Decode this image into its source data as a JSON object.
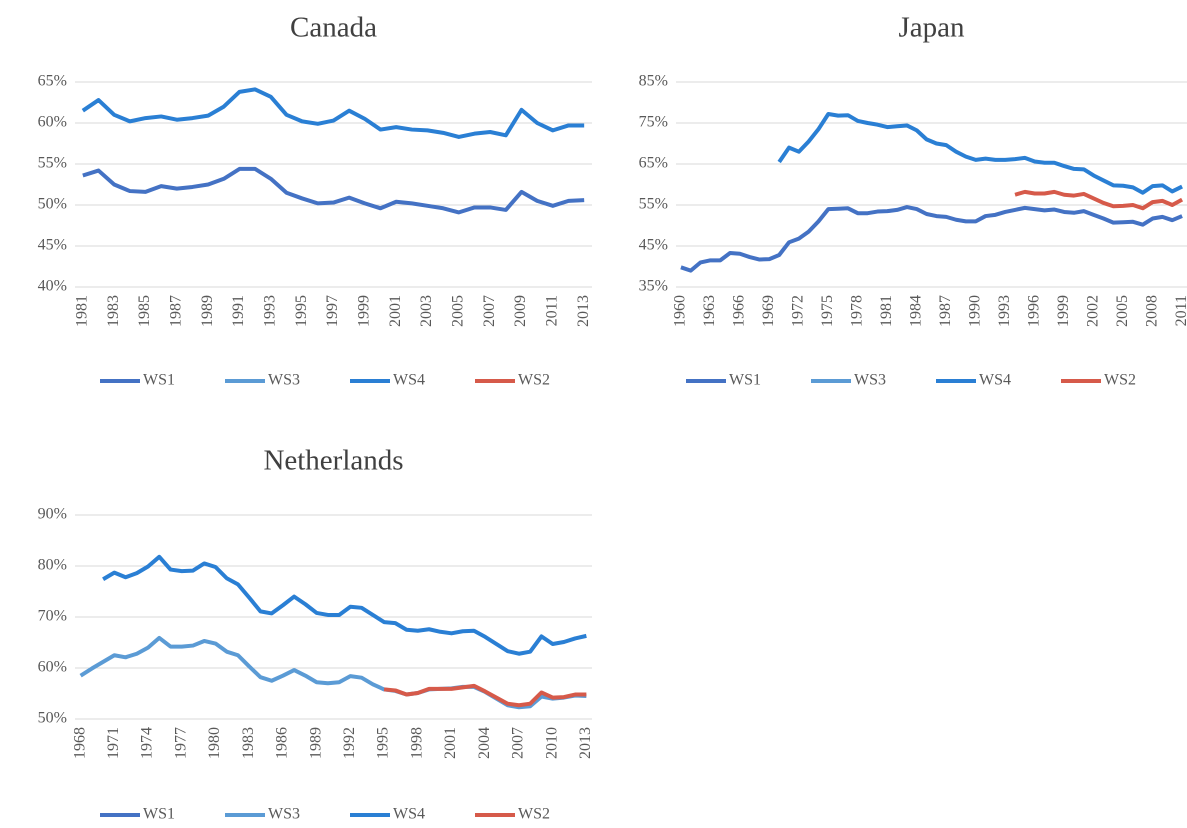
{
  "chart_data": [
    {
      "type": "line",
      "title": "Canada",
      "categories": [
        "1981",
        null,
        "1983",
        null,
        "1985",
        null,
        "1987",
        null,
        "1989",
        null,
        "1991",
        null,
        "1993",
        null,
        "1995",
        null,
        "1997",
        null,
        "1999",
        null,
        "2001",
        null,
        "2003",
        null,
        "2005",
        null,
        "2007",
        null,
        "2009",
        null,
        "2011",
        null,
        "2013"
      ],
      "ylim": [
        40,
        65
      ],
      "yticks": [
        {
          "value": 40,
          "label": "40%"
        },
        {
          "value": 45,
          "label": "45%"
        },
        {
          "value": 50,
          "label": "50%"
        },
        {
          "value": 55,
          "label": "55%"
        },
        {
          "value": 60,
          "label": "60%"
        },
        {
          "value": 65,
          "label": "65%"
        }
      ],
      "grid": true,
      "legend": "bottom",
      "series": [
        {
          "name": "WS1",
          "color": "#4472c4",
          "values": [
            53.6,
            54.2,
            52.5,
            51.7,
            51.6,
            52.3,
            52,
            52.2,
            52.5,
            53.2,
            54.4,
            54.4,
            53.2,
            51.5,
            50.8,
            50.2,
            50.3,
            50.9,
            50.2,
            49.6,
            50.4,
            50.2,
            49.9,
            49.6,
            49.1,
            49.7,
            49.7,
            49.4,
            51.6,
            50.5,
            49.9,
            50.5,
            50.6
          ]
        },
        {
          "name": "WS3",
          "color": "#5b9bd5",
          "values": [
            null,
            null,
            null,
            null,
            null,
            null,
            null,
            null,
            null,
            null,
            null,
            null,
            null,
            null,
            null,
            null,
            null,
            null,
            null,
            null,
            null,
            null,
            null,
            null,
            null,
            null,
            null,
            null,
            null,
            null,
            null,
            null,
            null
          ]
        },
        {
          "name": "WS4",
          "color": "#2a7fd4",
          "values": [
            61.5,
            62.8,
            61,
            60.2,
            60.6,
            60.8,
            60.4,
            60.6,
            60.9,
            62,
            63.8,
            64.1,
            63.2,
            61,
            60.2,
            59.9,
            60.3,
            61.5,
            60.5,
            59.2,
            59.5,
            59.2,
            59.1,
            58.8,
            58.3,
            58.7,
            58.9,
            58.5,
            61.6,
            60,
            59.1,
            59.7,
            59.7
          ]
        },
        {
          "name": "WS2",
          "color": "#d65a4a",
          "values": [
            null,
            null,
            null,
            null,
            null,
            null,
            null,
            null,
            null,
            null,
            null,
            null,
            null,
            null,
            null,
            null,
            null,
            null,
            null,
            null,
            null,
            null,
            null,
            null,
            null,
            null,
            null,
            null,
            null,
            null,
            null,
            null,
            null
          ]
        }
      ]
    },
    {
      "type": "line",
      "title": "Japan",
      "categories": [
        "1960",
        null,
        null,
        "1963",
        null,
        null,
        "1966",
        null,
        null,
        "1969",
        null,
        null,
        "1972",
        null,
        null,
        "1975",
        null,
        null,
        "1978",
        null,
        null,
        "1981",
        null,
        null,
        "1984",
        null,
        null,
        "1987",
        null,
        null,
        "1990",
        null,
        null,
        "1993",
        null,
        null,
        "1996",
        null,
        null,
        "1999",
        null,
        null,
        "2002",
        null,
        null,
        "2005",
        null,
        null,
        "2008",
        null,
        null,
        "2011"
      ],
      "ylim": [
        35,
        85
      ],
      "yticks": [
        {
          "value": 35,
          "label": "35%"
        },
        {
          "value": 45,
          "label": "45%"
        },
        {
          "value": 55,
          "label": "55%"
        },
        {
          "value": 65,
          "label": "65%"
        },
        {
          "value": 75,
          "label": "75%"
        },
        {
          "value": 85,
          "label": "85%"
        }
      ],
      "grid": true,
      "legend": "bottom",
      "series": [
        {
          "name": "WS1",
          "color": "#4472c4",
          "values": [
            39.8,
            39,
            41,
            41.5,
            41.5,
            43.3,
            43.1,
            42.3,
            41.7,
            41.8,
            42.8,
            45.9,
            46.8,
            48.5,
            51,
            54,
            54.1,
            54.2,
            53,
            53,
            53.4,
            53.5,
            53.8,
            54.5,
            54,
            52.8,
            52.3,
            52.1,
            51.4,
            51,
            51,
            52.3,
            52.6,
            53.3,
            53.8,
            54.3,
            54,
            53.7,
            53.9,
            53.3,
            53.1,
            53.5,
            52.6,
            51.7,
            50.7,
            50.8,
            50.9,
            50.2,
            51.7,
            52.1,
            51.3,
            52.3
          ]
        },
        {
          "name": "WS3",
          "color": "#5b9bd5",
          "values": [
            null,
            null,
            null,
            null,
            null,
            null,
            null,
            null,
            null,
            null,
            null,
            null,
            null,
            null,
            null,
            null,
            null,
            null,
            null,
            null,
            null,
            null,
            null,
            null,
            null,
            null,
            null,
            null,
            null,
            null,
            null,
            null,
            null,
            null,
            null,
            null,
            null,
            null,
            null,
            null,
            null,
            null,
            null,
            null,
            null,
            null,
            null,
            null,
            null,
            null,
            null,
            null
          ]
        },
        {
          "name": "WS4",
          "color": "#2a7fd4",
          "values": [
            null,
            null,
            null,
            null,
            null,
            null,
            null,
            null,
            null,
            null,
            65.5,
            69,
            68,
            70.5,
            73.5,
            77.2,
            76.8,
            76.9,
            75.5,
            75,
            74.6,
            74,
            74.2,
            74.4,
            73.2,
            71,
            70,
            69.6,
            68,
            66.8,
            66,
            66.3,
            66,
            66,
            66.2,
            66.5,
            65.6,
            65.3,
            65.3,
            64.5,
            63.8,
            63.7,
            62.2,
            61,
            59.8,
            59.7,
            59.3,
            58,
            59.6,
            59.8,
            58.3,
            59.5
          ]
        },
        {
          "name": "WS2",
          "color": "#d65a4a",
          "values": [
            null,
            null,
            null,
            null,
            null,
            null,
            null,
            null,
            null,
            null,
            null,
            null,
            null,
            null,
            null,
            null,
            null,
            null,
            null,
            null,
            null,
            null,
            null,
            null,
            null,
            null,
            null,
            null,
            null,
            null,
            null,
            null,
            null,
            null,
            57.5,
            58.2,
            57.8,
            57.8,
            58.2,
            57.5,
            57.3,
            57.7,
            56.6,
            55.5,
            54.7,
            54.8,
            55,
            54.2,
            55.7,
            56,
            55,
            56.3
          ]
        }
      ]
    },
    {
      "type": "line",
      "title": "Netherlands",
      "categories": [
        "1968",
        null,
        null,
        "1971",
        null,
        null,
        "1974",
        null,
        null,
        "1977",
        null,
        null,
        "1980",
        null,
        null,
        "1983",
        null,
        null,
        "1986",
        null,
        null,
        "1989",
        null,
        null,
        "1992",
        null,
        null,
        "1995",
        null,
        null,
        "1998",
        null,
        null,
        "2001",
        null,
        null,
        "2004",
        null,
        null,
        "2007",
        null,
        null,
        "2010",
        null,
        null,
        "2013"
      ],
      "ylim": [
        50,
        90
      ],
      "yticks": [
        {
          "value": 50,
          "label": "50%"
        },
        {
          "value": 60,
          "label": "60%"
        },
        {
          "value": 70,
          "label": "70%"
        },
        {
          "value": 80,
          "label": "80%"
        },
        {
          "value": 90,
          "label": "90%"
        }
      ],
      "grid": true,
      "legend": "bottom",
      "series": [
        {
          "name": "WS1",
          "color": "#4472c4",
          "values": [
            null,
            null,
            null,
            null,
            null,
            null,
            null,
            null,
            null,
            null,
            null,
            null,
            null,
            null,
            null,
            null,
            null,
            null,
            null,
            null,
            null,
            null,
            null,
            null,
            null,
            null,
            null,
            null,
            null,
            null,
            null,
            null,
            null,
            null,
            null,
            null,
            null,
            null,
            null,
            null,
            null,
            null,
            null,
            null,
            null,
            null
          ]
        },
        {
          "name": "WS3",
          "color": "#5b9bd5",
          "values": [
            58.5,
            59.9,
            61.2,
            62.5,
            62.1,
            62.8,
            64,
            65.9,
            64.2,
            64.2,
            64.4,
            65.3,
            64.8,
            63.2,
            62.5,
            60.3,
            58.2,
            57.5,
            58.5,
            59.6,
            58.5,
            57.2,
            57,
            57.2,
            58.4,
            58.1,
            56.8,
            55.8,
            55.5,
            54.8,
            55.1,
            55.8,
            55.9,
            56,
            56.3,
            56.3,
            55.3,
            54,
            52.7,
            52.3,
            52.5,
            54.4,
            54,
            54.2,
            54.6,
            54.5
          ]
        },
        {
          "name": "WS4",
          "color": "#2a7fd4",
          "values": [
            null,
            null,
            77.4,
            78.7,
            77.8,
            78.6,
            79.9,
            81.8,
            79.3,
            79,
            79.1,
            80.5,
            79.8,
            77.6,
            76.4,
            73.8,
            71.1,
            70.7,
            72.3,
            74,
            72.5,
            70.8,
            70.4,
            70.4,
            72,
            71.8,
            70.4,
            69,
            68.8,
            67.5,
            67.3,
            67.6,
            67.1,
            66.8,
            67.2,
            67.3,
            66.1,
            64.7,
            63.3,
            62.8,
            63.2,
            66.2,
            64.7,
            65.1,
            65.8,
            66.3
          ]
        },
        {
          "name": "WS2",
          "color": "#d65a4a",
          "values": [
            null,
            null,
            null,
            null,
            null,
            null,
            null,
            null,
            null,
            null,
            null,
            null,
            null,
            null,
            null,
            null,
            null,
            null,
            null,
            null,
            null,
            null,
            null,
            null,
            null,
            null,
            null,
            55.8,
            55.6,
            54.8,
            55.1,
            55.9,
            55.9,
            55.9,
            56.2,
            56.5,
            55.4,
            54.2,
            53,
            52.7,
            53,
            55.2,
            54.2,
            54.3,
            54.8,
            54.8
          ]
        }
      ]
    }
  ]
}
